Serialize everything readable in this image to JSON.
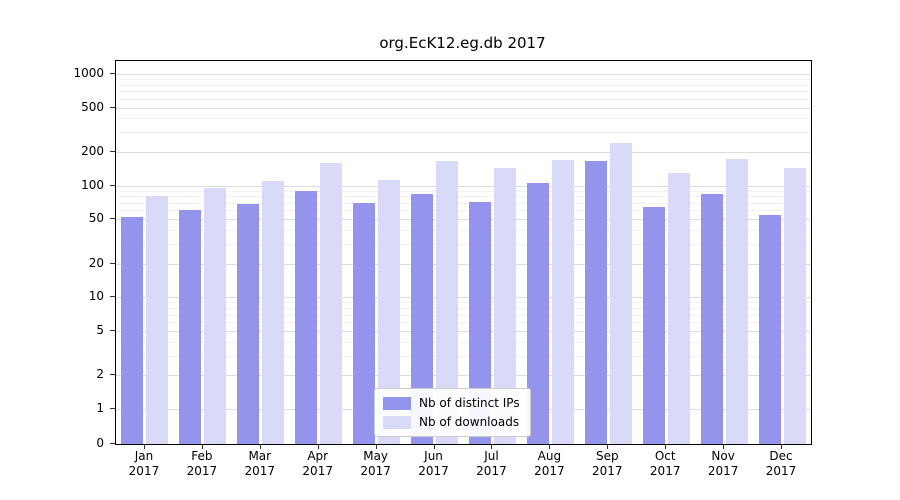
{
  "chart_data": {
    "type": "bar",
    "title": "org.EcK12.eg.db 2017",
    "categories": [
      "Jan",
      "Feb",
      "Mar",
      "Apr",
      "May",
      "Jun",
      "Jul",
      "Aug",
      "Sep",
      "Oct",
      "Nov",
      "Dec"
    ],
    "year_label": "2017",
    "series": [
      {
        "name": "Nb of distinct IPs",
        "color": "#9494ec",
        "values": [
          52,
          60,
          68,
          90,
          70,
          85,
          72,
          105,
          165,
          65,
          85,
          55
        ]
      },
      {
        "name": "Nb of downloads",
        "color": "#d9d9f8",
        "values": [
          80,
          95,
          110,
          160,
          112,
          165,
          145,
          170,
          240,
          130,
          175,
          145
        ]
      }
    ],
    "y_ticks": [
      0,
      1,
      2,
      5,
      10,
      20,
      50,
      100,
      200,
      500,
      1000
    ],
    "y_scale": "log",
    "ylim": [
      0,
      1000
    ],
    "grid": true,
    "legend_position": "bottom-center"
  }
}
